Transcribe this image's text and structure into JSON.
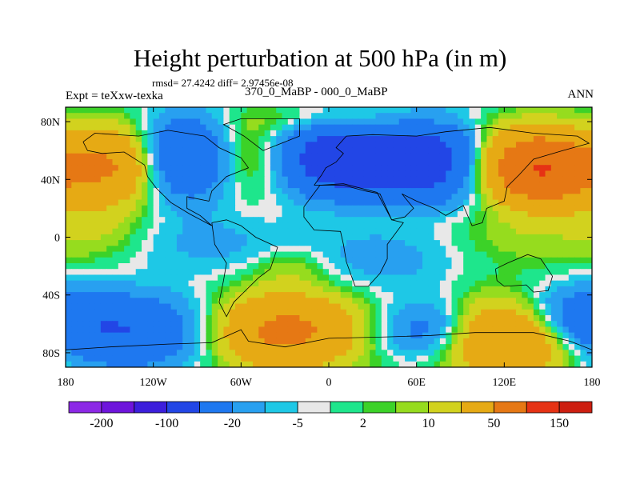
{
  "title": "Height perturbation at 500 hPa (in m)",
  "stats_line": "rmsd= 27.4242 diff= 2.97456e-08",
  "left_label": "Expt = teXxw-texka",
  "center_label": "370_0_MaBP - 000_0_MaBP",
  "right_label": "ANN",
  "map": {
    "x_ticks": [
      {
        "lon": -180,
        "label": "180"
      },
      {
        "lon": -120,
        "label": "120W"
      },
      {
        "lon": -60,
        "label": "60W"
      },
      {
        "lon": 0,
        "label": "0"
      },
      {
        "lon": 60,
        "label": "60E"
      },
      {
        "lon": 120,
        "label": "120E"
      },
      {
        "lon": 180,
        "label": "180"
      }
    ],
    "y_ticks": [
      {
        "lat": 80,
        "label": "80N"
      },
      {
        "lat": 40,
        "label": "40N"
      },
      {
        "lat": 0,
        "label": "0"
      },
      {
        "lat": -40,
        "label": "40S"
      },
      {
        "lat": -80,
        "label": "80S"
      }
    ],
    "lon_range": [
      -180,
      180
    ],
    "lat_range": [
      -90,
      90
    ]
  },
  "colorbar": {
    "colors": [
      "#8c28e6",
      "#6e14dc",
      "#3c1edc",
      "#2246e6",
      "#1e78f0",
      "#28a0f0",
      "#1ec8e6",
      "#e8e8e8",
      "#1ee68c",
      "#3cd228",
      "#96dc1e",
      "#d2d21e",
      "#e6aa14",
      "#e67814",
      "#e63214",
      "#cd1e10"
    ],
    "labels": [
      {
        "boundary": 1,
        "text": "-200"
      },
      {
        "boundary": 3,
        "text": "-100"
      },
      {
        "boundary": 5,
        "text": "-20"
      },
      {
        "boundary": 7,
        "text": "-5"
      },
      {
        "boundary": 9,
        "text": "2"
      },
      {
        "boundary": 11,
        "text": "10"
      },
      {
        "boundary": 13,
        "text": "50"
      },
      {
        "boundary": 15,
        "text": "150"
      }
    ]
  },
  "field_blobs": [
    {
      "lon": -145,
      "lat": 50,
      "amp": 50,
      "slon": 22,
      "slat": 18
    },
    {
      "lon": -95,
      "lat": 55,
      "amp": -60,
      "slon": 25,
      "slat": 20
    },
    {
      "lon": -55,
      "lat": 55,
      "amp": 40,
      "slon": 25,
      "slat": 18
    },
    {
      "lon": 10,
      "lat": 55,
      "amp": -85,
      "slon": 38,
      "slat": 18
    },
    {
      "lon": 75,
      "lat": 55,
      "amp": -70,
      "slon": 30,
      "slat": 20
    },
    {
      "lon": 145,
      "lat": 45,
      "amp": 90,
      "slon": 30,
      "slat": 16
    },
    {
      "lon": 120,
      "lat": 60,
      "amp": 30,
      "slon": 40,
      "slat": 15
    },
    {
      "lon": 30,
      "lat": 80,
      "amp": 20,
      "slon": 50,
      "slat": 8
    },
    {
      "lon": -160,
      "lat": 5,
      "amp": 10,
      "slon": 25,
      "slat": 15
    },
    {
      "lon": -80,
      "lat": -5,
      "amp": -12,
      "slon": 40,
      "slat": 15
    },
    {
      "lon": -25,
      "lat": -20,
      "amp": 12,
      "slon": 20,
      "slat": 10
    },
    {
      "lon": 35,
      "lat": -15,
      "amp": -15,
      "slon": 40,
      "slat": 15
    },
    {
      "lon": 130,
      "lat": 0,
      "amp": 8,
      "slon": 40,
      "slat": 15
    },
    {
      "lon": -140,
      "lat": -65,
      "amp": -50,
      "slon": 40,
      "slat": 18
    },
    {
      "lon": -30,
      "lat": -65,
      "amp": 60,
      "slon": 35,
      "slat": 18
    },
    {
      "lon": 70,
      "lat": -65,
      "amp": -40,
      "slon": 25,
      "slat": 15
    },
    {
      "lon": 120,
      "lat": -70,
      "amp": 60,
      "slon": 35,
      "slat": 18
    },
    {
      "lon": 165,
      "lat": -55,
      "amp": -30,
      "slon": 25,
      "slat": 15
    }
  ],
  "coastlines": [
    [
      [
        -168,
        66
      ],
      [
        -160,
        72
      ],
      [
        -130,
        70
      ],
      [
        -110,
        74
      ],
      [
        -85,
        70
      ],
      [
        -75,
        62
      ],
      [
        -60,
        55
      ],
      [
        -55,
        48
      ],
      [
        -70,
        42
      ],
      [
        -80,
        32
      ],
      [
        -82,
        25
      ],
      [
        -97,
        28
      ],
      [
        -97,
        20
      ],
      [
        -88,
        15
      ],
      [
        -80,
        8
      ],
      [
        -95,
        16
      ],
      [
        -108,
        24
      ],
      [
        -118,
        34
      ],
      [
        -124,
        42
      ],
      [
        -126,
        50
      ],
      [
        -140,
        59
      ],
      [
        -155,
        58
      ],
      [
        -165,
        60
      ],
      [
        -168,
        66
      ]
    ],
    [
      [
        -80,
        10
      ],
      [
        -70,
        12
      ],
      [
        -60,
        8
      ],
      [
        -50,
        0
      ],
      [
        -35,
        -7
      ],
      [
        -40,
        -22
      ],
      [
        -48,
        -28
      ],
      [
        -58,
        -38
      ],
      [
        -65,
        -45
      ],
      [
        -70,
        -55
      ],
      [
        -75,
        -45
      ],
      [
        -72,
        -30
      ],
      [
        -70,
        -18
      ],
      [
        -78,
        -5
      ],
      [
        -80,
        10
      ]
    ],
    [
      [
        -45,
        60
      ],
      [
        -20,
        70
      ],
      [
        -20,
        82
      ],
      [
        -60,
        82
      ],
      [
        -72,
        78
      ],
      [
        -58,
        70
      ],
      [
        -45,
        60
      ]
    ],
    [
      [
        -10,
        36
      ],
      [
        -5,
        43
      ],
      [
        -2,
        48
      ],
      [
        5,
        52
      ],
      [
        10,
        58
      ],
      [
        5,
        62
      ],
      [
        12,
        70
      ],
      [
        30,
        71
      ],
      [
        60,
        70
      ],
      [
        80,
        73
      ],
      [
        110,
        76
      ],
      [
        140,
        72
      ],
      [
        170,
        70
      ],
      [
        178,
        65
      ],
      [
        160,
        60
      ],
      [
        140,
        54
      ],
      [
        130,
        43
      ],
      [
        122,
        35
      ],
      [
        120,
        25
      ],
      [
        108,
        20
      ],
      [
        105,
        10
      ],
      [
        98,
        8
      ],
      [
        92,
        22
      ],
      [
        80,
        15
      ],
      [
        72,
        20
      ],
      [
        60,
        25
      ],
      [
        50,
        30
      ],
      [
        58,
        20
      ],
      [
        52,
        14
      ],
      [
        43,
        12
      ],
      [
        35,
        30
      ],
      [
        25,
        32
      ],
      [
        10,
        36
      ],
      [
        -10,
        36
      ]
    ],
    [
      [
        -17,
        21
      ],
      [
        -17,
        14
      ],
      [
        -10,
        5
      ],
      [
        8,
        4
      ],
      [
        10,
        -5
      ],
      [
        12,
        -17
      ],
      [
        18,
        -34
      ],
      [
        27,
        -34
      ],
      [
        35,
        -25
      ],
      [
        40,
        -15
      ],
      [
        40,
        -5
      ],
      [
        51,
        10
      ],
      [
        43,
        12
      ],
      [
        33,
        31
      ],
      [
        10,
        37
      ],
      [
        -6,
        36
      ],
      [
        -17,
        21
      ]
    ],
    [
      [
        114,
        -22
      ],
      [
        122,
        -18
      ],
      [
        136,
        -12
      ],
      [
        145,
        -15
      ],
      [
        153,
        -27
      ],
      [
        150,
        -37
      ],
      [
        140,
        -38
      ],
      [
        135,
        -33
      ],
      [
        120,
        -34
      ],
      [
        115,
        -30
      ],
      [
        114,
        -22
      ]
    ],
    [
      [
        -180,
        -78
      ],
      [
        -150,
        -76
      ],
      [
        -110,
        -74
      ],
      [
        -80,
        -73
      ],
      [
        -60,
        -64
      ],
      [
        -55,
        -72
      ],
      [
        -30,
        -76
      ],
      [
        0,
        -70
      ],
      [
        40,
        -69
      ],
      [
        70,
        -68
      ],
      [
        100,
        -66
      ],
      [
        140,
        -66
      ],
      [
        165,
        -72
      ],
      [
        180,
        -78
      ]
    ]
  ]
}
